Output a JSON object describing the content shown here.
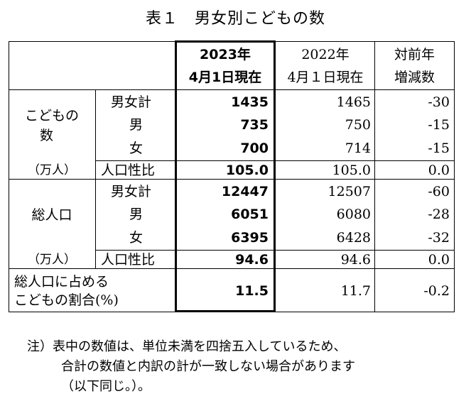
{
  "title": "表１　男女別こどもの数",
  "header": {
    "col2023_line1": "2023年",
    "col2023_line2": "4月1日現在",
    "col2022_line1": "2022年",
    "col2022_line2": "4月１日現在",
    "col_diff_line1": "対前年",
    "col_diff_line2": "増減数"
  },
  "children": {
    "group_label_line1": "こどもの",
    "group_label_line2": "数",
    "unit": "（万人）",
    "rows": [
      {
        "label": "男女計",
        "v2023": "1435",
        "v2022": "1465",
        "diff": "-30"
      },
      {
        "label": "男",
        "v2023": "735",
        "v2022": "750",
        "diff": "-15"
      },
      {
        "label": "女",
        "v2023": "700",
        "v2022": "714",
        "diff": "-15"
      },
      {
        "label": "人口性比",
        "v2023": "105.0",
        "v2022": "105.0",
        "diff": "0.0"
      }
    ]
  },
  "total": {
    "group_label": "総人口",
    "unit": "（万人）",
    "rows": [
      {
        "label": "男女計",
        "v2023": "12447",
        "v2022": "12507",
        "diff": "-60"
      },
      {
        "label": "男",
        "v2023": "6051",
        "v2022": "6080",
        "diff": "-28"
      },
      {
        "label": "女",
        "v2023": "6395",
        "v2022": "6428",
        "diff": "-32"
      },
      {
        "label": "人口性比",
        "v2023": "94.6",
        "v2022": "94.6",
        "diff": "0.0"
      }
    ]
  },
  "ratio": {
    "label_line1": "総人口に占める",
    "label_line2": "こどもの割合(%)",
    "v2023": "11.5",
    "v2022": "11.7",
    "diff": "-0.2"
  },
  "note": {
    "line1": "注）表中の数値は、単位未満を四捨五入しているため、",
    "line2": "合計の数値と内訳の計が一致しない場合があります",
    "line3": "（以下同じ。）。"
  }
}
